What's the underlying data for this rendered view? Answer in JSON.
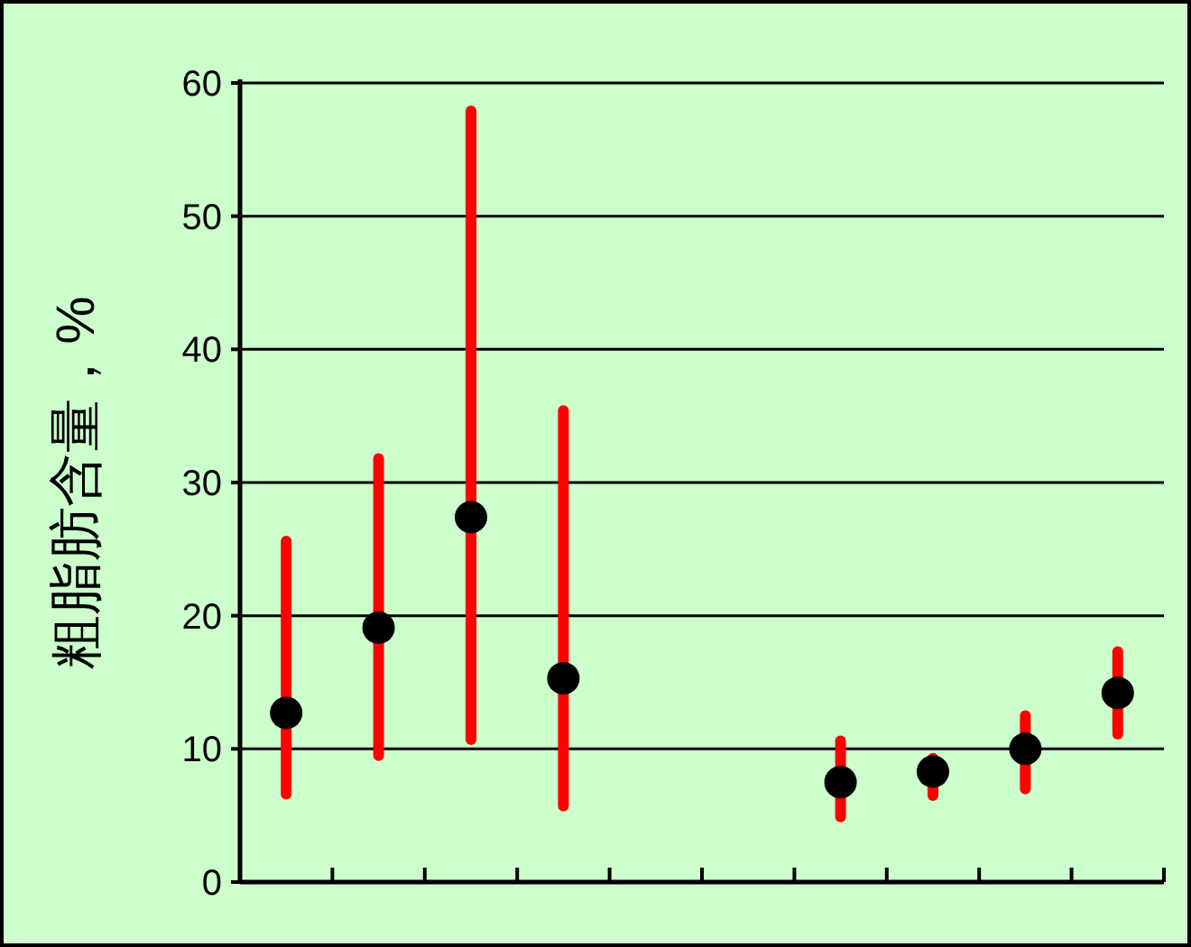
{
  "chart_data": {
    "type": "scatter",
    "ylabel": "粗脂肪含量，%",
    "categories": [
      null,
      null,
      null,
      null,
      null,
      null,
      null,
      null,
      null,
      null
    ],
    "series": [
      {
        "color": "#000000",
        "values": [
          12.7,
          19.1,
          27.4,
          15.3,
          null,
          null,
          7.5,
          8.3,
          10.0,
          14.2
        ],
        "errors": [
          [
            6.6,
            25.6
          ],
          [
            9.5,
            31.8
          ],
          [
            10.7,
            57.9
          ],
          [
            5.7,
            35.4
          ],
          null,
          null,
          [
            4.9,
            10.6
          ],
          [
            6.5,
            9.3
          ],
          [
            7.0,
            12.5
          ],
          [
            11.1,
            17.3
          ]
        ]
      }
    ],
    "ylim": [
      0,
      60
    ],
    "yticks": [
      0,
      10,
      20,
      30,
      40,
      50,
      60
    ],
    "grid": "y",
    "marker": "circle"
  }
}
